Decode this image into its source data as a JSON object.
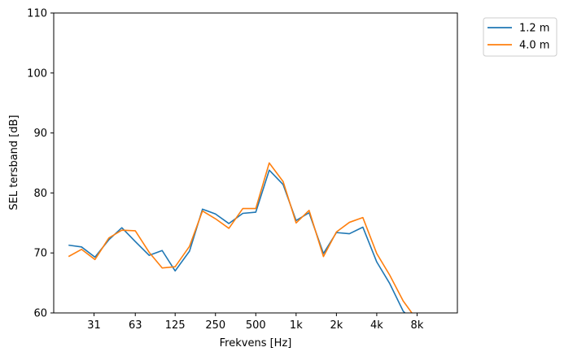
{
  "chart_data": {
    "type": "line",
    "xlabel": "Frekvens [Hz]",
    "ylabel": "SEL tersband [dB]",
    "ylim": [
      60,
      110
    ],
    "yticks": [
      "60",
      "70",
      "80",
      "90",
      "100",
      "110"
    ],
    "x_scale": "log",
    "xticks": [
      {
        "value": 31,
        "label": "31"
      },
      {
        "value": 63,
        "label": "63"
      },
      {
        "value": 125,
        "label": "125"
      },
      {
        "value": 250,
        "label": "250"
      },
      {
        "value": 500,
        "label": "500"
      },
      {
        "value": 1000,
        "label": "1k"
      },
      {
        "value": 2000,
        "label": "2k"
      },
      {
        "value": 4000,
        "label": "4k"
      },
      {
        "value": 8000,
        "label": "8k"
      }
    ],
    "x": [
      20,
      25,
      31.5,
      40,
      50,
      63,
      80,
      100,
      125,
      160,
      200,
      250,
      315,
      400,
      500,
      630,
      800,
      1000,
      1250,
      1600,
      2000,
      2500,
      3150,
      4000,
      5000,
      6300,
      8000
    ],
    "grid": false,
    "legend_position": "outside-top-right",
    "series": [
      {
        "name": "1.2 m",
        "color": "#1f77b4",
        "values": [
          71.3,
          71.0,
          69.3,
          72.2,
          74.2,
          71.9,
          69.6,
          70.4,
          67.0,
          70.3,
          77.3,
          76.5,
          74.9,
          76.6,
          76.8,
          83.8,
          81.4,
          75.4,
          76.7,
          69.9,
          73.4,
          73.2,
          74.3,
          68.5,
          64.9,
          60.3,
          58.0
        ]
      },
      {
        "name": "4.0 m",
        "color": "#ff7f0e",
        "values": [
          69.4,
          70.6,
          68.9,
          72.5,
          73.8,
          73.7,
          70.1,
          67.5,
          67.7,
          71.1,
          77.0,
          75.7,
          74.1,
          77.4,
          77.4,
          85.0,
          81.9,
          75.0,
          77.1,
          69.4,
          73.5,
          75.1,
          75.9,
          69.9,
          66.3,
          62.0,
          58.8
        ]
      }
    ]
  }
}
